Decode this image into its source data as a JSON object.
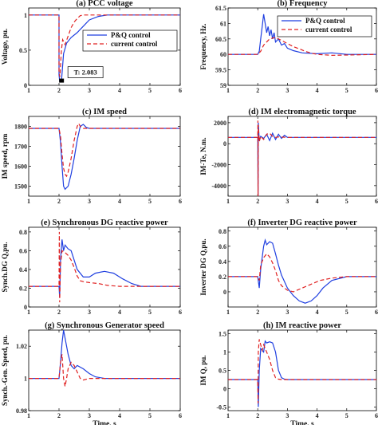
{
  "chart_data": [
    {
      "type": "line",
      "title": "(a) PCC voltage",
      "ylabel": "Voltage, pu.",
      "xlabel": "",
      "xlim": [
        1,
        6
      ],
      "ylim": [
        0,
        1.1
      ],
      "xticks": [
        "1",
        "2",
        "3",
        "4",
        "5",
        "6"
      ],
      "xtick_values": [
        1,
        2,
        3,
        4,
        5,
        6
      ],
      "yticks": [
        "0",
        "0.5",
        "1"
      ],
      "ytick_values": [
        0,
        0.5,
        1
      ],
      "legend": {
        "position": "middle-right",
        "entries": [
          "P&Q control",
          "current control"
        ]
      },
      "annotation": {
        "text": "T: 2.083",
        "x": 2.083,
        "y": 0.05
      },
      "series": [
        {
          "name": "P&Q control",
          "color": "#1f3fe0",
          "dash": "solid",
          "x": [
            1,
            2.0,
            2.001,
            2.02,
            2.08,
            2.15,
            2.25,
            2.4,
            2.6,
            2.8,
            3.0,
            3.3,
            3.6,
            4,
            6
          ],
          "y": [
            1,
            1,
            0.15,
            0.06,
            0.05,
            0.45,
            0.6,
            0.68,
            0.75,
            0.84,
            0.93,
            0.98,
            1.0,
            1.0,
            1.0
          ]
        },
        {
          "name": "current control",
          "color": "#e02020",
          "dash": "dashed",
          "x": [
            1,
            2.0,
            2.001,
            2.03,
            2.08,
            2.12,
            2.2,
            2.3,
            2.4,
            2.5,
            2.6,
            2.7,
            2.8,
            3.0,
            6
          ],
          "y": [
            1,
            1,
            0.2,
            0.12,
            0.5,
            0.65,
            0.58,
            0.7,
            0.82,
            0.9,
            0.95,
            0.99,
            1.0,
            1.0,
            1.0
          ]
        }
      ]
    },
    {
      "type": "line",
      "title": "(b) Frequency",
      "ylabel": "Frequency, Hz.",
      "xlabel": "",
      "xlim": [
        1,
        6
      ],
      "ylim": [
        59,
        61.5
      ],
      "xticks": [
        "1",
        "2",
        "3",
        "4",
        "5",
        "6"
      ],
      "xtick_values": [
        1,
        2,
        3,
        4,
        5,
        6
      ],
      "yticks": [
        "59",
        "59.5",
        "60",
        "60.5",
        "61",
        "61.5"
      ],
      "ytick_values": [
        59,
        59.5,
        60,
        60.5,
        61,
        61.5
      ],
      "legend": {
        "position": "top-right",
        "entries": [
          "P&Q control",
          "current control"
        ]
      },
      "series": [
        {
          "name": "P&Q control",
          "color": "#1f3fe0",
          "dash": "solid",
          "x": [
            1,
            2.0,
            2.05,
            2.1,
            2.15,
            2.2,
            2.25,
            2.3,
            2.35,
            2.4,
            2.45,
            2.5,
            2.55,
            2.6,
            2.7,
            2.8,
            2.9,
            3.0,
            3.2,
            3.5,
            4.0,
            4.5,
            5.0,
            6
          ],
          "y": [
            60,
            60,
            60.1,
            60.5,
            60.9,
            61.3,
            61.0,
            60.7,
            60.9,
            60.6,
            60.8,
            60.5,
            60.7,
            60.4,
            60.5,
            60.3,
            60.35,
            60.2,
            60.12,
            60.05,
            60.02,
            60.05,
            60.0,
            60.0
          ]
        },
        {
          "name": "current control",
          "color": "#e02020",
          "dash": "dashed",
          "x": [
            1,
            2.0,
            2.1,
            2.2,
            2.4,
            2.6,
            2.8,
            3.0,
            3.2,
            3.4,
            3.6,
            3.8,
            4.0,
            4.5,
            5.0,
            6
          ],
          "y": [
            60,
            60,
            60.1,
            60.3,
            60.5,
            60.55,
            60.45,
            60.35,
            60.25,
            60.18,
            60.1,
            60.04,
            60.0,
            59.97,
            59.98,
            60.0
          ]
        }
      ]
    },
    {
      "type": "line",
      "title": "(c) IM speed",
      "ylabel": "IM speed, rpm",
      "xlabel": "",
      "xlim": [
        1,
        6
      ],
      "ylim": [
        1450,
        1850
      ],
      "xticks": [
        "1",
        "2",
        "3",
        "4",
        "5",
        "6"
      ],
      "xtick_values": [
        1,
        2,
        3,
        4,
        5,
        6
      ],
      "yticks": [
        "1500",
        "1600",
        "1700",
        "1800"
      ],
      "ytick_values": [
        1500,
        1600,
        1700,
        1800
      ],
      "series": [
        {
          "name": "P&Q control",
          "color": "#1f3fe0",
          "dash": "solid",
          "x": [
            1,
            2.0,
            2.05,
            2.1,
            2.15,
            2.2,
            2.3,
            2.4,
            2.5,
            2.6,
            2.7,
            2.8,
            2.9,
            3.0,
            6
          ],
          "y": [
            1790,
            1790,
            1720,
            1600,
            1500,
            1485,
            1500,
            1560,
            1640,
            1730,
            1800,
            1810,
            1795,
            1790,
            1790
          ]
        },
        {
          "name": "current control",
          "color": "#e02020",
          "dash": "dashed",
          "x": [
            1,
            2.0,
            2.05,
            2.1,
            2.15,
            2.2,
            2.25,
            2.3,
            2.4,
            2.5,
            2.6,
            2.65,
            2.7,
            2.8,
            3.0,
            6
          ],
          "y": [
            1790,
            1790,
            1750,
            1660,
            1590,
            1560,
            1550,
            1570,
            1640,
            1730,
            1800,
            1815,
            1800,
            1790,
            1790,
            1790
          ]
        }
      ]
    },
    {
      "type": "line",
      "title": "(d) IM electromagnetic torque",
      "ylabel": "IM-Te, N.m.",
      "xlabel": "",
      "xlim": [
        1,
        6
      ],
      "ylim": [
        -5000,
        2600
      ],
      "xticks": [
        "1",
        "2",
        "3",
        "4",
        "5",
        "6"
      ],
      "xtick_values": [
        1,
        2,
        3,
        4,
        5,
        6
      ],
      "yticks": [
        "-4000",
        "-2000",
        "0",
        "2000"
      ],
      "ytick_values": [
        -4000,
        -2000,
        0,
        2000
      ],
      "series": [
        {
          "name": "P&Q control",
          "color": "#1f3fe0",
          "dash": "solid",
          "x": [
            1,
            2.0,
            2.01,
            2.02,
            2.05,
            2.1,
            2.2,
            2.3,
            2.4,
            2.5,
            2.6,
            2.7,
            2.8,
            2.9,
            3.0,
            3.2,
            6
          ],
          "y": [
            600,
            600,
            -5000,
            2000,
            300,
            700,
            500,
            900,
            300,
            1000,
            400,
            900,
            500,
            800,
            600,
            600,
            600
          ]
        },
        {
          "name": "current control",
          "color": "#e02020",
          "dash": "dashed",
          "x": [
            1,
            2.0,
            2.005,
            2.01,
            2.02,
            2.05,
            2.1,
            2.2,
            2.3,
            2.4,
            2.5,
            2.6,
            2.7,
            3.0,
            6
          ],
          "y": [
            600,
            600,
            2200,
            -5000,
            1800,
            200,
            700,
            400,
            900,
            1000,
            700,
            600,
            650,
            600,
            600
          ]
        }
      ]
    },
    {
      "type": "line",
      "title": "(e) Synchronous DG reactive power",
      "ylabel": "Synch.DG Q,pu.",
      "xlabel": "",
      "xlim": [
        1,
        6
      ],
      "ylim": [
        0,
        0.85
      ],
      "xticks": [
        "1",
        "2",
        "3",
        "4",
        "5",
        "6"
      ],
      "xtick_values": [
        1,
        2,
        3,
        4,
        5,
        6
      ],
      "yticks": [
        "0",
        "0.2",
        "0.4",
        "0.6",
        "0.8"
      ],
      "ytick_values": [
        0,
        0.2,
        0.4,
        0.6,
        0.8
      ],
      "series": [
        {
          "name": "P&Q control",
          "color": "#1f3fe0",
          "dash": "solid",
          "x": [
            1,
            2.0,
            2.02,
            2.05,
            2.1,
            2.15,
            2.2,
            2.3,
            2.4,
            2.5,
            2.6,
            2.8,
            3.0,
            3.2,
            3.5,
            3.8,
            4.1,
            4.4,
            4.7,
            5.0,
            6
          ],
          "y": [
            0.22,
            0.22,
            0.1,
            0.5,
            0.72,
            0.6,
            0.66,
            0.62,
            0.6,
            0.5,
            0.4,
            0.32,
            0.32,
            0.36,
            0.38,
            0.36,
            0.3,
            0.25,
            0.22,
            0.22,
            0.22
          ]
        },
        {
          "name": "current control",
          "color": "#e02020",
          "dash": "dashed",
          "x": [
            1,
            2.0,
            2.01,
            2.02,
            2.05,
            2.1,
            2.2,
            2.3,
            2.4,
            2.5,
            2.6,
            2.7,
            2.8,
            3.0,
            3.3,
            3.6,
            4.0,
            6
          ],
          "y": [
            0.22,
            0.22,
            0.8,
            0.05,
            0.45,
            0.6,
            0.58,
            0.55,
            0.5,
            0.42,
            0.33,
            0.28,
            0.27,
            0.26,
            0.25,
            0.23,
            0.22,
            0.22
          ]
        }
      ]
    },
    {
      "type": "line",
      "title": "(f) Inverter DG reactive power",
      "ylabel": "Inverter DG Q,pu.",
      "xlabel": "",
      "xlim": [
        1,
        6
      ],
      "ylim": [
        -0.2,
        0.85
      ],
      "xticks": [
        "1",
        "2",
        "3",
        "4",
        "5",
        "6"
      ],
      "xtick_values": [
        1,
        2,
        3,
        4,
        5,
        6
      ],
      "yticks": [
        "0",
        "0.2",
        "0.4",
        "0.6",
        "0.8"
      ],
      "ytick_values": [
        0,
        0.2,
        0.4,
        0.6,
        0.8
      ],
      "series": [
        {
          "name": "P&Q control",
          "color": "#1f3fe0",
          "dash": "solid",
          "x": [
            1,
            2.0,
            2.05,
            2.1,
            2.2,
            2.25,
            2.3,
            2.4,
            2.5,
            2.6,
            2.7,
            2.8,
            3.0,
            3.2,
            3.4,
            3.6,
            3.8,
            4.0,
            4.2,
            4.5,
            5.0,
            6
          ],
          "y": [
            0.2,
            0.2,
            0.05,
            0.3,
            0.6,
            0.68,
            0.62,
            0.66,
            0.64,
            0.5,
            0.35,
            0.22,
            0.05,
            -0.05,
            -0.12,
            -0.15,
            -0.12,
            -0.05,
            0.05,
            0.15,
            0.2,
            0.2
          ]
        },
        {
          "name": "current control",
          "color": "#e02020",
          "dash": "dashed",
          "x": [
            1,
            2.0,
            2.05,
            2.1,
            2.2,
            2.3,
            2.4,
            2.5,
            2.6,
            2.7,
            2.8,
            3.0,
            3.2,
            3.5,
            3.8,
            4.1,
            4.5,
            5.0,
            6
          ],
          "y": [
            0.2,
            0.2,
            0.15,
            0.35,
            0.45,
            0.5,
            0.46,
            0.38,
            0.28,
            0.15,
            0.08,
            0.02,
            0.0,
            0.05,
            0.1,
            0.15,
            0.18,
            0.2,
            0.2
          ]
        }
      ]
    },
    {
      "type": "line",
      "title": "(g) Synchronous Generator speed",
      "ylabel": "Synch.-Gen. Speed, pu.",
      "xlabel": "Time, s",
      "xlim": [
        1,
        6
      ],
      "ylim": [
        0.98,
        1.03
      ],
      "xticks": [
        "1",
        "2",
        "3",
        "4",
        "5",
        "6"
      ],
      "xtick_values": [
        1,
        2,
        3,
        4,
        5,
        6
      ],
      "yticks": [
        "0.98",
        "1",
        "1.02"
      ],
      "ytick_values": [
        0.98,
        1.0,
        1.02
      ],
      "series": [
        {
          "name": "P&Q control",
          "color": "#1f3fe0",
          "dash": "solid",
          "x": [
            1,
            2.0,
            2.05,
            2.1,
            2.15,
            2.2,
            2.3,
            2.4,
            2.5,
            2.6,
            2.8,
            3.0,
            3.2,
            3.5,
            4.0,
            6
          ],
          "y": [
            1.0,
            1.0,
            1.01,
            1.022,
            1.03,
            1.025,
            1.015,
            1.008,
            1.006,
            1.008,
            1.006,
            1.003,
            1.001,
            1.0,
            1.0,
            1.0
          ]
        },
        {
          "name": "current control",
          "color": "#e02020",
          "dash": "dashed",
          "x": [
            1,
            2.0,
            2.05,
            2.1,
            2.15,
            2.2,
            2.25,
            2.3,
            2.4,
            2.5,
            2.6,
            2.7,
            2.8,
            3.0,
            6
          ],
          "y": [
            1.0,
            1.0,
            1.01,
            1.015,
            1.0,
            0.995,
            1.0,
            1.006,
            1.01,
            1.008,
            1.004,
            1.0,
            0.999,
            1.0,
            1.0
          ]
        }
      ]
    },
    {
      "type": "line",
      "title": "(h) IM reactive power",
      "ylabel": "IM Q, pu.",
      "xlabel": "Time, s",
      "xlim": [
        1,
        6
      ],
      "ylim": [
        -0.6,
        1.6
      ],
      "xticks": [
        "1",
        "2",
        "3",
        "4",
        "5",
        "6"
      ],
      "xtick_values": [
        1,
        2,
        3,
        4,
        5,
        6
      ],
      "yticks": [
        "-0.5",
        "0",
        "0.5",
        "1",
        "1.5"
      ],
      "ytick_values": [
        -0.5,
        0,
        0.5,
        1,
        1.5
      ],
      "series": [
        {
          "name": "P&Q control",
          "color": "#1f3fe0",
          "dash": "solid",
          "x": [
            1,
            2.0,
            2.02,
            2.05,
            2.1,
            2.2,
            2.25,
            2.3,
            2.4,
            2.5,
            2.6,
            2.7,
            2.8,
            2.9,
            3.0,
            6
          ],
          "y": [
            0.25,
            0.25,
            -0.5,
            0.5,
            1.1,
            1.0,
            1.3,
            1.25,
            1.28,
            1.25,
            1.0,
            0.5,
            0.3,
            0.26,
            0.25,
            0.25
          ]
        },
        {
          "name": "current control",
          "color": "#e02020",
          "dash": "dashed",
          "x": [
            1,
            2.0,
            2.01,
            2.02,
            2.05,
            2.1,
            2.15,
            2.2,
            2.3,
            2.4,
            2.5,
            2.6,
            2.7,
            2.8,
            6
          ],
          "y": [
            0.25,
            0.25,
            -0.4,
            1.0,
            1.35,
            1.2,
            1.05,
            1.2,
            1.0,
            0.8,
            0.5,
            0.3,
            0.26,
            0.25,
            0.25
          ]
        }
      ]
    }
  ]
}
